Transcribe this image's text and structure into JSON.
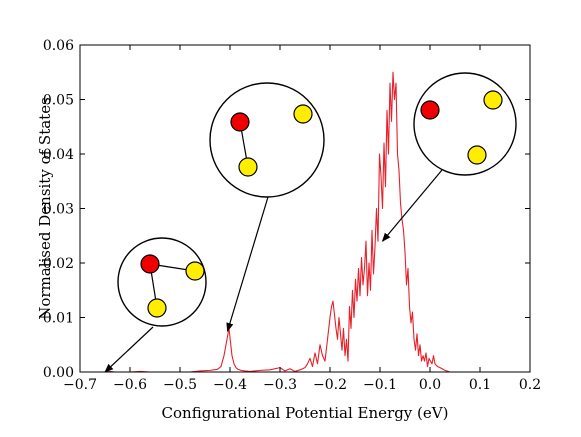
{
  "chart_data": {
    "type": "line",
    "title": "",
    "xlabel": "Configurational Potential Energy (eV)",
    "ylabel": "Normalised Density of States",
    "xlim": [
      -0.7,
      0.2
    ],
    "ylim": [
      0,
      0.06
    ],
    "xticks": [
      -0.7,
      -0.6,
      -0.5,
      -0.4,
      -0.3,
      -0.2,
      -0.1,
      0.0,
      0.1,
      0.2
    ],
    "xtick_labels": [
      "−0.7",
      "−0.6",
      "−0.5",
      "−0.4",
      "−0.3",
      "−0.2",
      "−0.1",
      "0.0",
      "0.1",
      "0.2"
    ],
    "yticks": [
      0,
      0.01,
      0.02,
      0.03,
      0.04,
      0.05,
      0.06
    ],
    "ytick_labels": [
      "0.00",
      "0.01",
      "0.02",
      "0.03",
      "0.04",
      "0.05",
      "0.06"
    ],
    "grid": false,
    "series": [
      {
        "color": "#e8202a",
        "x": [
          -0.65,
          -0.64,
          -0.63,
          -0.62,
          -0.6,
          -0.58,
          -0.56,
          -0.54,
          -0.52,
          -0.5,
          -0.48,
          -0.46,
          -0.44,
          -0.425,
          -0.418,
          -0.412,
          -0.406,
          -0.402,
          -0.399,
          -0.396,
          -0.392,
          -0.388,
          -0.384,
          -0.378,
          -0.37,
          -0.36,
          -0.34,
          -0.32,
          -0.3,
          -0.29,
          -0.28,
          -0.27,
          -0.26,
          -0.25,
          -0.245,
          -0.24,
          -0.235,
          -0.23,
          -0.225,
          -0.22,
          -0.215,
          -0.21,
          -0.205,
          -0.2,
          -0.197,
          -0.194,
          -0.191,
          -0.188,
          -0.185,
          -0.182,
          -0.179,
          -0.176,
          -0.173,
          -0.17,
          -0.167,
          -0.164,
          -0.161,
          -0.158,
          -0.155,
          -0.152,
          -0.149,
          -0.146,
          -0.143,
          -0.14,
          -0.137,
          -0.134,
          -0.131,
          -0.128,
          -0.125,
          -0.122,
          -0.119,
          -0.116,
          -0.113,
          -0.11,
          -0.107,
          -0.104,
          -0.101,
          -0.098,
          -0.095,
          -0.092,
          -0.089,
          -0.086,
          -0.083,
          -0.08,
          -0.077,
          -0.074,
          -0.071,
          -0.068,
          -0.065,
          -0.062,
          -0.059,
          -0.056,
          -0.053,
          -0.05,
          -0.047,
          -0.044,
          -0.041,
          -0.038,
          -0.035,
          -0.032,
          -0.029,
          -0.026,
          -0.023,
          -0.02,
          -0.017,
          -0.014,
          -0.011,
          -0.008,
          -0.005,
          -0.002,
          0.001,
          0.004,
          0.007,
          0.01,
          0.015,
          0.02,
          0.03,
          0.04
        ],
        "y": [
          0.0,
          0.0001,
          0.0,
          0.0,
          0.0,
          0.0001,
          0.0,
          0.0,
          0.0,
          0.0,
          0.0,
          0.0002,
          0.0003,
          0.0005,
          0.001,
          0.003,
          0.006,
          0.008,
          0.0055,
          0.003,
          0.0015,
          0.0008,
          0.0005,
          0.0003,
          0.0002,
          0.0001,
          0.0003,
          0.0004,
          0.0008,
          0.0002,
          0.0006,
          0.0001,
          0.0004,
          0.0008,
          0.0015,
          0.0025,
          0.001,
          0.0035,
          0.0015,
          0.005,
          0.003,
          0.002,
          0.006,
          0.01,
          0.012,
          0.013,
          0.0105,
          0.008,
          0.006,
          0.01,
          0.007,
          0.004,
          0.008,
          0.003,
          0.006,
          0.002,
          0.012,
          0.008,
          0.015,
          0.01,
          0.017,
          0.013,
          0.019,
          0.014,
          0.021,
          0.016,
          0.019,
          0.024,
          0.014,
          0.02,
          0.015,
          0.026,
          0.018,
          0.023,
          0.03,
          0.024,
          0.04,
          0.036,
          0.03,
          0.042,
          0.034,
          0.048,
          0.04,
          0.053,
          0.046,
          0.055,
          0.05,
          0.053,
          0.04,
          0.037,
          0.031,
          0.028,
          0.026,
          0.022,
          0.016,
          0.019,
          0.012,
          0.009,
          0.011,
          0.006,
          0.004,
          0.007,
          0.003,
          0.005,
          0.002,
          0.003,
          0.002,
          0.0035,
          0.001,
          0.0025,
          0.002,
          0.0015,
          0.003,
          0.0015,
          0.001,
          0.0008,
          0.0003,
          0.0
        ]
      }
    ],
    "annotations": [
      {
        "name": "annotation-triangle",
        "arrow_to": [
          -0.65,
          0.0
        ],
        "molecule": "triangle"
      },
      {
        "name": "annotation-bent",
        "arrow_to": [
          -0.405,
          0.0075
        ],
        "molecule": "bent"
      },
      {
        "name": "annotation-dissociated",
        "arrow_to": [
          -0.095,
          0.024
        ],
        "molecule": "dissociated"
      }
    ],
    "atom_colors": {
      "center": "#ee0000",
      "outer": "#ffee00"
    }
  }
}
